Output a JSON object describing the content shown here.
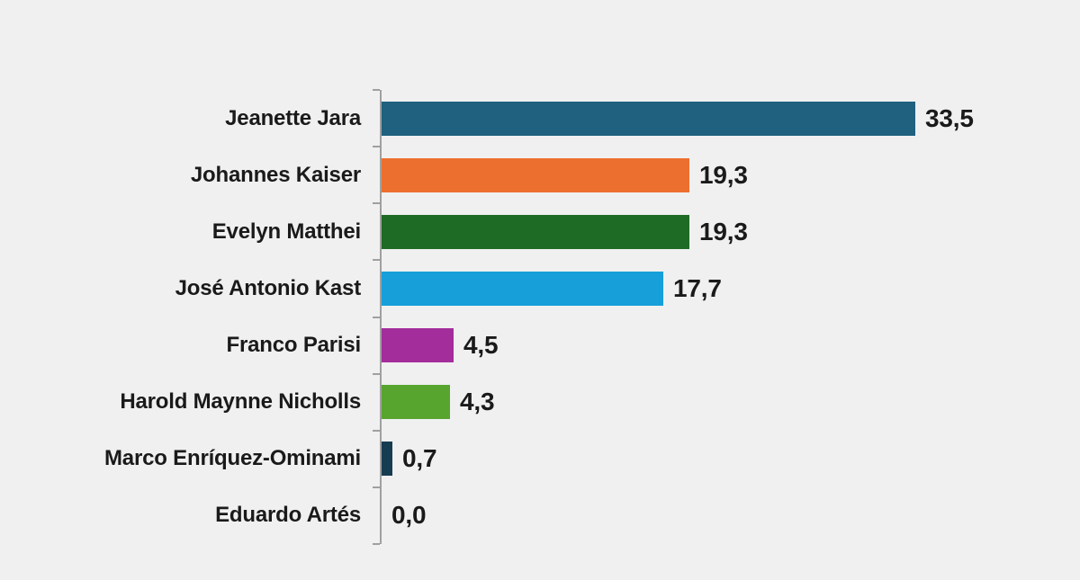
{
  "page": {
    "background_color": "#f0f0f0",
    "axis_color": "#a0a0a0",
    "text_color": "#1a1a1a"
  },
  "chart_data": {
    "type": "bar",
    "orientation": "horizontal",
    "title": "",
    "xlabel": "",
    "ylabel": "",
    "grid": false,
    "legend": false,
    "xlim": [
      0,
      33.5
    ],
    "categories": [
      "Jeanette Jara",
      "Johannes Kaiser",
      "Evelyn Matthei",
      "José Antonio Kast",
      "Franco Parisi",
      "Harold Maynne Nicholls",
      "Marco Enríquez-Ominami",
      "Eduardo Artés"
    ],
    "values": [
      33.5,
      19.3,
      19.3,
      17.7,
      4.5,
      4.3,
      0.7,
      0.0
    ],
    "value_labels": [
      "33,5",
      "19,3",
      "19,3",
      "17,7",
      "4,5",
      "4,3",
      "0,7",
      "0,0"
    ],
    "bar_colors": [
      "#1f617f",
      "#ed6f2f",
      "#1e6b26",
      "#169fd9",
      "#a32d9b",
      "#57a52f",
      "#163c52",
      "#cccccc"
    ]
  }
}
